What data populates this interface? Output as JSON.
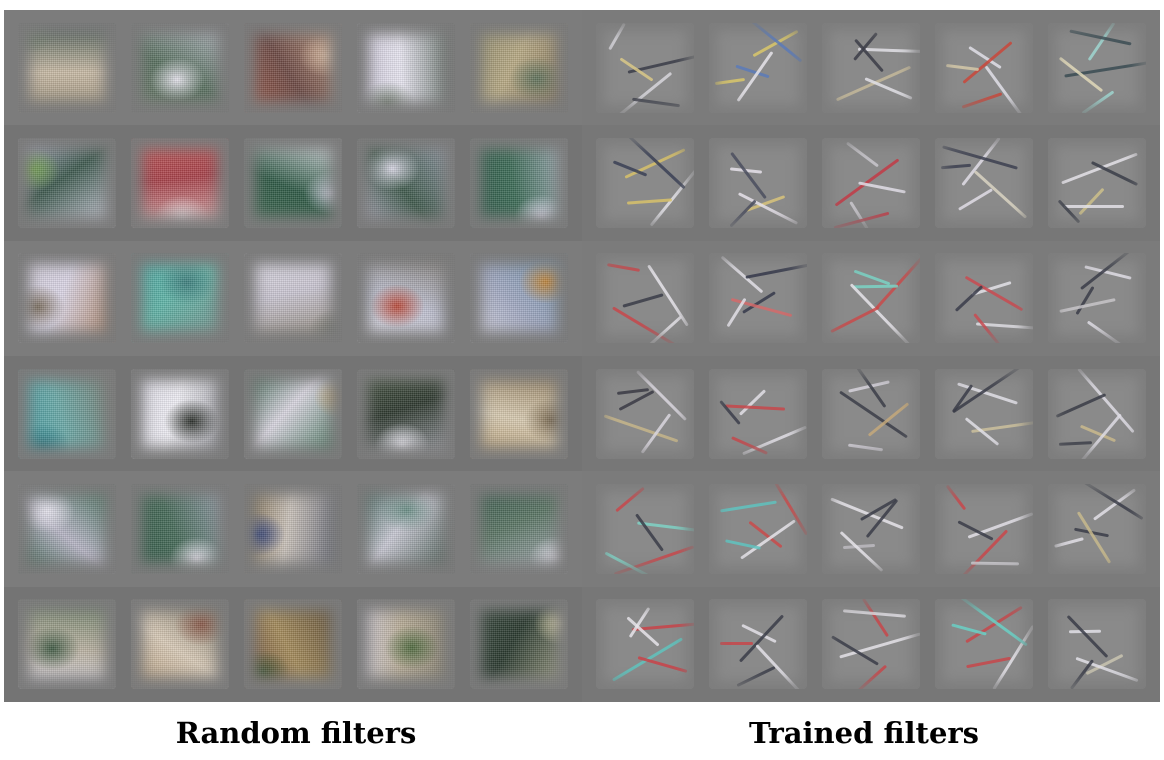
{
  "captions": {
    "random": "Random filters",
    "trained": "Trained filters"
  },
  "random_palettes": [
    [
      "#9a8f7a",
      "#6f7d6a",
      "#c7b9a4",
      "#4d5f57"
    ],
    [
      "#6a7a68",
      "#e3e1ea",
      "#58705f",
      "#b8bcc7"
    ],
    [
      "#a05a4a",
      "#d1b29a",
      "#6d4a45",
      "#c7a58a"
    ],
    [
      "#c9c4d6",
      "#7e8b7c",
      "#e6e4ef",
      "#5d6a61"
    ],
    [
      "#8e8a6b",
      "#5f725c",
      "#b6a883",
      "#7a6a52"
    ],
    [
      "#b9b7cf",
      "#72a34d",
      "#3e5a4f",
      "#d8d6e6"
    ],
    [
      "#c55a5a",
      "#e4d0d4",
      "#a7424a",
      "#d9b6b6"
    ],
    [
      "#3e6850",
      "#c5c8d6",
      "#2f5a46",
      "#e6e6ee"
    ],
    [
      "#b8b2c8",
      "#d8d6e4",
      "#3f5a4c",
      "#9a9fb0"
    ],
    [
      "#2f5a4a",
      "#d6d6e6",
      "#3c6b56",
      "#a8b2be"
    ],
    [
      "#cfc9d6",
      "#7d6f5f",
      "#d9d4e4",
      "#a77a5a"
    ],
    [
      "#4aa6a2",
      "#3f7f7e",
      "#5fb3a6",
      "#7a8f8a"
    ],
    [
      "#e0dde8",
      "#6b6f66",
      "#c8c4d0",
      "#8d8475"
    ],
    [
      "#e3e0ea",
      "#b94a3a",
      "#bdbfcf",
      "#7d7870"
    ],
    [
      "#d9d6e2",
      "#c2863a",
      "#9fa7c0",
      "#6a8fa8"
    ],
    [
      "#3f9ea6",
      "#2e7d86",
      "#6aa8a6",
      "#7a7a70"
    ],
    [
      "#d6d4e0",
      "#2b2f2a",
      "#eeedf3",
      "#8b8c93"
    ],
    [
      "#2e5a44",
      "#c9a56a",
      "#d7d4de",
      "#3a6c52"
    ],
    [
      "#4b5a46",
      "#e8e7ef",
      "#2f3a30",
      "#a7a7b0"
    ],
    [
      "#b59a70",
      "#7c6a50",
      "#d6c9b0",
      "#8f7a5a"
    ],
    [
      "#2e5a44",
      "#e4e2ec",
      "#b6b4c4",
      "#3a6a52"
    ],
    [
      "#2f5a46",
      "#e2e0ea",
      "#466a58",
      "#9ca3b3"
    ],
    [
      "#7d6a4a",
      "#2e3f7a",
      "#c8c0b8",
      "#5a5f6f"
    ],
    [
      "#2f5a4e",
      "#6a8f86",
      "#c7c7d2",
      "#3a4f44"
    ],
    [
      "#35584a",
      "#e0dee8",
      "#5a7564",
      "#b0b3be"
    ],
    [
      "#d5d2dd",
      "#3f5a44",
      "#b9b1a1",
      "#6b7f66"
    ],
    [
      "#b49a7a",
      "#8a5a4a",
      "#d7c9b6",
      "#6f6a5a"
    ],
    [
      "#6b4a3a",
      "#3f5230",
      "#a38a5a",
      "#5a4a35"
    ],
    [
      "#d4cfdc",
      "#4f6a3f",
      "#b7ab95",
      "#7f7a6a"
    ],
    [
      "#3a4a3f",
      "#d7cfa8",
      "#2a3a2f",
      "#a8a68c"
    ]
  ],
  "trained_accents": [
    [
      "#d7d6dc",
      "#3a3c48",
      "#d9c887"
    ],
    [
      "#d9c76a",
      "#5a7ab8",
      "#e6e4ea"
    ],
    [
      "#e2e0e6",
      "#3b3c46",
      "#c4b99a"
    ],
    [
      "#e0dfe7",
      "#c9463a",
      "#d3c8a8"
    ],
    [
      "#9fd6d0",
      "#3a4b52",
      "#e0d8b8"
    ],
    [
      "#d7c16a",
      "#3a3f55",
      "#e3e2e8"
    ],
    [
      "#e6e2ea",
      "#4a4d5e",
      "#d8c37a"
    ],
    [
      "#c9c7cd",
      "#c23a45",
      "#e0dde6"
    ],
    [
      "#e0dde6",
      "#3c4050",
      "#d9d4c2"
    ],
    [
      "#e4e2e8",
      "#3a3d48",
      "#cdbf8a"
    ],
    [
      "#c8464a",
      "#e6e4ea",
      "#3a3c48"
    ],
    [
      "#e2dfe6",
      "#35384a",
      "#d46a6a"
    ],
    [
      "#c94a4a",
      "#7ad2c4",
      "#e6e4ea"
    ],
    [
      "#e3e2e8",
      "#c94a50",
      "#3a3c4a"
    ],
    [
      "#e0dee6",
      "#3a3c48",
      "#c7c4c8"
    ],
    [
      "#d9d6de",
      "#3a3a44",
      "#c6b58a"
    ],
    [
      "#e2dfe6",
      "#c7464a",
      "#3b3d4a"
    ],
    [
      "#d8d5de",
      "#3b3d48",
      "#c4a87a"
    ],
    [
      "#e1dfe6",
      "#3a3c48",
      "#cbbf9c"
    ],
    [
      "#dedce4",
      "#3a3c46",
      "#c9b98c"
    ],
    [
      "#c9464a",
      "#7fd2c6",
      "#3a3c48"
    ],
    [
      "#5fc3c0",
      "#c94a4a",
      "#e6e4ea"
    ],
    [
      "#e6e4ea",
      "#3a3c48",
      "#bcbac0"
    ],
    [
      "#c9464a",
      "#e2dfe6",
      "#3a3c48"
    ],
    [
      "#e2dfe6",
      "#3a3c48",
      "#c7b88c"
    ],
    [
      "#c94248",
      "#e6e4ea",
      "#5fc3bd"
    ],
    [
      "#e3e1e8",
      "#3a3c48",
      "#c7464a"
    ],
    [
      "#c7464a",
      "#e4e2e8",
      "#3a3c48"
    ],
    [
      "#c7464a",
      "#6ad0c6",
      "#e4e2e8"
    ],
    [
      "#e2e0e7",
      "#3a3c48",
      "#c9c4b0"
    ]
  ]
}
